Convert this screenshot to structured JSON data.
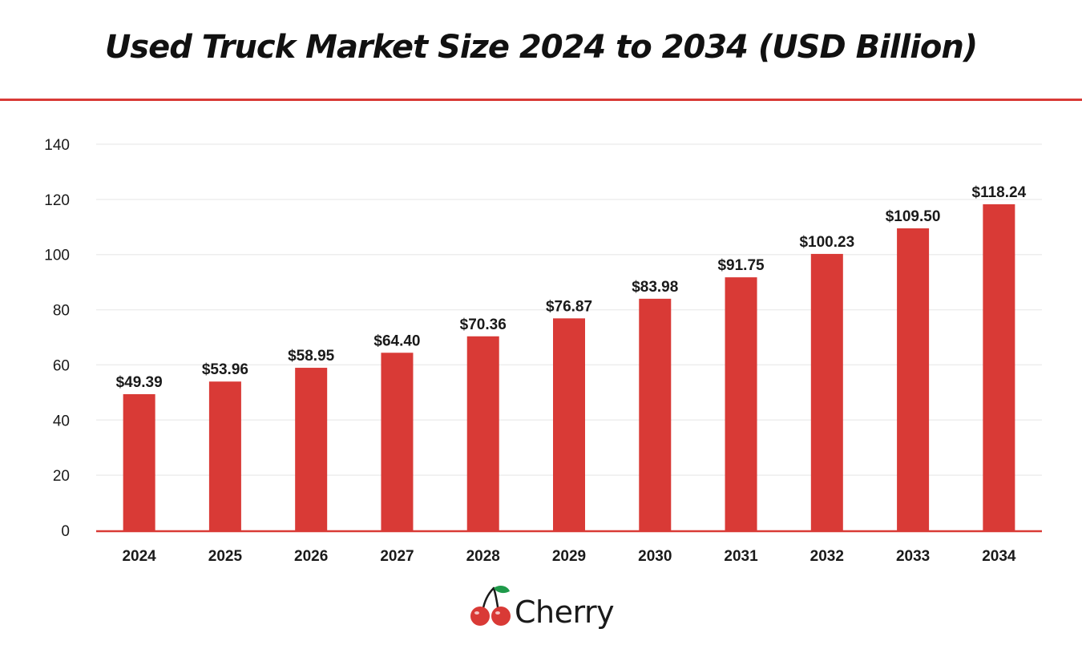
{
  "header": {
    "title": "Used Truck Market Size 2024 to 2034 (USD Billion)"
  },
  "colors": {
    "accent": "#d93a36",
    "grid": "#eeeeee",
    "text": "#1a1a1a",
    "leaf": "#1f9a4a"
  },
  "chart_data": {
    "type": "bar",
    "title": "Used Truck Market Size 2024 to 2034 (USD Billion)",
    "categories": [
      "2024",
      "2025",
      "2026",
      "2027",
      "2028",
      "2029",
      "2030",
      "2031",
      "2032",
      "2033",
      "2034"
    ],
    "values": [
      49.39,
      53.96,
      58.95,
      64.4,
      70.36,
      76.87,
      83.98,
      91.75,
      100.23,
      109.5,
      118.24
    ],
    "data_labels": [
      "$49.39",
      "$53.96",
      "$58.95",
      "$64.40",
      "$70.36",
      "$76.87",
      "$83.98",
      "$91.75",
      "$100.23",
      "$109.50",
      "$118.24"
    ],
    "ylim": [
      0,
      140
    ],
    "yticks": [
      0,
      20,
      40,
      60,
      80,
      100,
      120,
      140
    ],
    "xlabel": "",
    "ylabel": "",
    "grid": true,
    "legend": "none"
  },
  "footer": {
    "brand": "Cherry",
    "logo_icon": "cherry-icon"
  }
}
